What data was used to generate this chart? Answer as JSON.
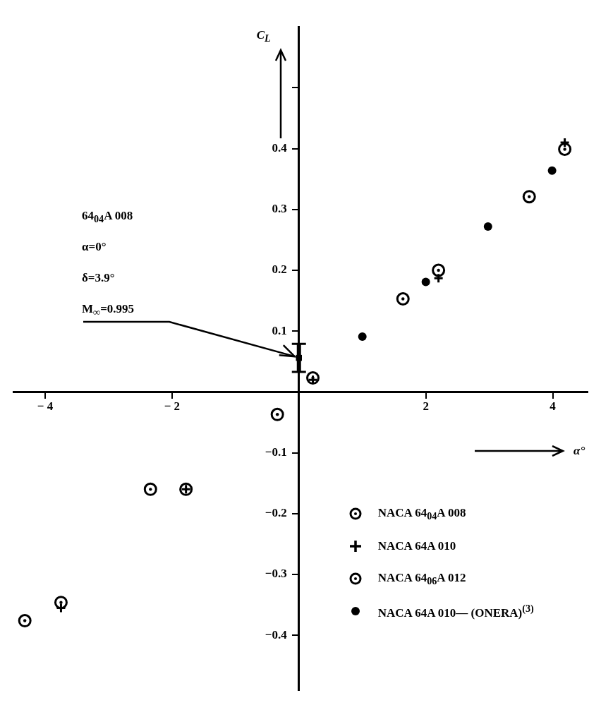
{
  "chart_data": {
    "type": "scatter",
    "xlabel": "α°",
    "ylabel": "C$_{L}$",
    "xlim": [
      -4.5,
      4.55
    ],
    "ylim": [
      -0.49,
      0.6
    ],
    "xticks": [
      -4,
      -2,
      2,
      4
    ],
    "yticks": [
      -0.4,
      -0.3,
      -0.2,
      -0.1,
      0.1,
      0.2,
      0.3,
      0.4,
      {
        "value": 0.5,
        "label": null
      }
    ],
    "grid": false,
    "legend": "bottom right",
    "annotations": [
      "64$_{04}$A 008",
      "α=0°",
      "δ=3.9°",
      {
        "text": "M$_{∞}$=0.995",
        "x": 0,
        "y": 0.056
      }
    ],
    "series": [
      {
        "name": "NACA 64$_{04}$A 008",
        "color": "#000000",
        "marker": "circle",
        "x": [
          0.22,
          2.2,
          4.19,
          -1.78,
          -3.75
        ],
        "values": [
          0.023,
          0.2,
          0.399,
          -0.16,
          -0.346
        ]
      },
      {
        "name": "NACA 64A 010",
        "color": "#000000",
        "marker": "cross",
        "x": [
          0.22,
          2.2,
          4.19,
          -1.78,
          -3.75
        ],
        "values": [
          0.02,
          0.187,
          0.41,
          -0.16,
          -0.355
        ]
      },
      {
        "name": "NACA 64$_{06}$A 012",
        "color": "#000000",
        "marker": "circle",
        "x": [
          -4.32,
          -2.34,
          -0.34,
          1.64,
          3.63
        ],
        "values": [
          -0.376,
          -0.16,
          -0.037,
          0.153,
          0.321
        ]
      },
      {
        "name": "NACA 64A 010— (ONERA)$^{(3)}$",
        "color": "#000000",
        "x": [
          1.0,
          2.0,
          2.98,
          3.99
        ],
        "values": [
          0.091,
          0.181,
          0.272,
          0.364
        ]
      },
      {
        "color": "#000000",
        "marker": "square",
        "x": [
          0
        ],
        "values": [
          0.056
        ],
        "errors": [
          [
            0.033,
            0.079
          ]
        ]
      }
    ]
  }
}
